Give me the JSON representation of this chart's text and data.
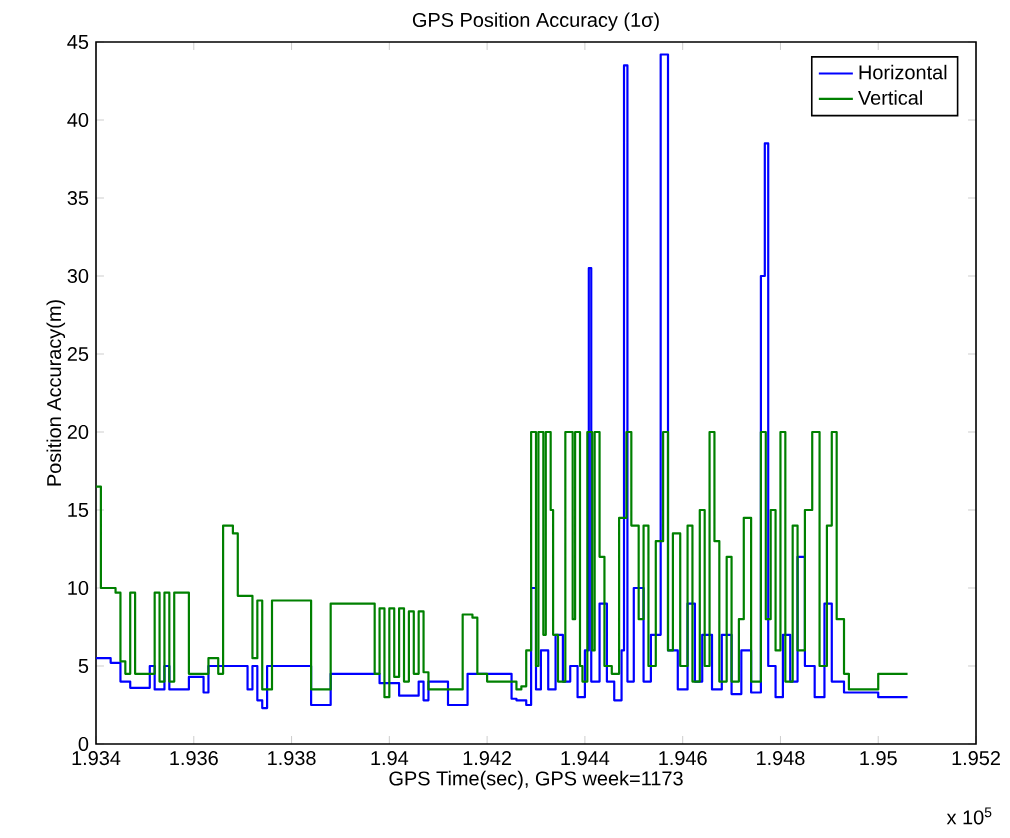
{
  "chart_data": {
    "type": "step",
    "title": "GPS Position Accuracy (1σ)",
    "xlabel": "GPS Time(sec), GPS week=1173",
    "ylabel": "Position Accuracy(m)",
    "annotations": [
      "x 10$^{5}$"
    ],
    "xlim": [
      1.934,
      1.952
    ],
    "xticks": [
      1.934,
      1.936,
      1.938,
      1.94,
      1.942,
      1.944,
      1.946,
      1.948,
      1.95,
      1.952
    ],
    "ylim": [
      0,
      45
    ],
    "yticks": [
      0,
      5,
      10,
      15,
      20,
      25,
      30,
      35,
      40,
      45
    ],
    "grid": false,
    "legend": "top right",
    "marker": "none",
    "line_style": "solid",
    "series": [
      {
        "name": "Horizontal",
        "color": "#0000ff",
        "x": [
          1.934,
          1.9343,
          1.9345,
          1.9347,
          1.935,
          1.9351,
          1.9352,
          1.9354,
          1.9355,
          1.9358,
          1.9359,
          1.9362,
          1.9363,
          1.937,
          1.9371,
          1.9372,
          1.9373,
          1.9374,
          1.9375,
          1.9383,
          1.9384,
          1.9387,
          1.9388,
          1.9397,
          1.9398,
          1.9401,
          1.9402,
          1.9405,
          1.9406,
          1.9407,
          1.9408,
          1.9411,
          1.9412,
          1.9415,
          1.9416,
          1.9424,
          1.9425,
          1.9426,
          1.9428,
          1.9429,
          1.943,
          1.9431,
          1.94325,
          1.9434,
          1.94355,
          1.9437,
          1.94385,
          1.944,
          1.94408,
          1.94413,
          1.9443,
          1.94445,
          1.9446,
          1.94475,
          1.9448,
          1.94487,
          1.945,
          1.9452,
          1.94535,
          1.94555,
          1.9457,
          1.9459,
          1.9461,
          1.94625,
          1.9464,
          1.9466,
          1.9468,
          1.947,
          1.9472,
          1.9474,
          1.9476,
          1.94768,
          1.94775,
          1.9479,
          1.94805,
          1.9482,
          1.94835,
          1.9485,
          1.9487,
          1.9489,
          1.94905,
          1.9493,
          1.95,
          1.9506
        ],
        "values": [
          5.5,
          5.2,
          4.0,
          3.6,
          3.6,
          5.0,
          3.5,
          5.0,
          3.5,
          3.5,
          4.3,
          3.3,
          5.0,
          5.0,
          3.5,
          5.0,
          2.8,
          2.3,
          5.0,
          5.0,
          2.5,
          2.5,
          4.5,
          4.5,
          3.9,
          3.9,
          3.1,
          3.1,
          4.0,
          2.8,
          4.0,
          4.0,
          2.5,
          2.5,
          4.5,
          4.5,
          2.9,
          2.8,
          2.5,
          10,
          3.5,
          6,
          3.5,
          7,
          4,
          5,
          3,
          6,
          30.5,
          4,
          9,
          4,
          2.8,
          6,
          43.5,
          4,
          10,
          4,
          7,
          44.2,
          6,
          3.5,
          9,
          4,
          7,
          3.5,
          7,
          3.2,
          6,
          3.3,
          30,
          38.5,
          5,
          3,
          7,
          4,
          12,
          5,
          3,
          9,
          4,
          3.3,
          3.0,
          3.0
        ]
      },
      {
        "name": "Vertical",
        "color": "#008000",
        "x": [
          1.934,
          1.9341,
          1.9344,
          1.9345,
          1.9346,
          1.9347,
          1.9348,
          1.9351,
          1.9352,
          1.9353,
          1.9354,
          1.9355,
          1.9356,
          1.9358,
          1.9359,
          1.9362,
          1.9363,
          1.9365,
          1.9366,
          1.9368,
          1.9369,
          1.9371,
          1.9372,
          1.9373,
          1.9374,
          1.9375,
          1.9376,
          1.9383,
          1.9384,
          1.9387,
          1.9388,
          1.9396,
          1.9397,
          1.9398,
          1.9399,
          1.94,
          1.9401,
          1.9402,
          1.9403,
          1.9404,
          1.9405,
          1.9406,
          1.9407,
          1.9408,
          1.9414,
          1.9415,
          1.9417,
          1.9418,
          1.942,
          1.9423,
          1.9426,
          1.9427,
          1.9428,
          1.9429,
          1.943,
          1.94305,
          1.94315,
          1.9432,
          1.9433,
          1.94335,
          1.94345,
          1.9436,
          1.94375,
          1.9438,
          1.9439,
          1.94395,
          1.94405,
          1.94415,
          1.9442,
          1.9443,
          1.9444,
          1.94455,
          1.9447,
          1.94485,
          1.94495,
          1.9451,
          1.9452,
          1.9453,
          1.94545,
          1.9456,
          1.9457,
          1.9458,
          1.94595,
          1.9461,
          1.9462,
          1.94635,
          1.94645,
          1.94655,
          1.94665,
          1.94675,
          1.9469,
          1.947,
          1.94715,
          1.94725,
          1.9474,
          1.9476,
          1.9477,
          1.9478,
          1.9479,
          1.948,
          1.9481,
          1.94825,
          1.94835,
          1.9485,
          1.94865,
          1.9488,
          1.94895,
          1.94905,
          1.94915,
          1.9493,
          1.9494,
          1.95,
          1.9506
        ],
        "values": [
          16.5,
          10,
          9.7,
          5.3,
          4.5,
          9.7,
          4.5,
          4.5,
          9.7,
          4,
          9.7,
          4,
          9.7,
          9.7,
          4.5,
          4.5,
          5.5,
          4.5,
          14,
          13.5,
          9.5,
          9.5,
          5.5,
          9.2,
          3.5,
          3.5,
          9.2,
          9.2,
          3.5,
          3.5,
          9,
          9,
          4.5,
          8.7,
          3.0,
          8.7,
          4.3,
          8.7,
          4,
          8.5,
          4.5,
          8.5,
          4.6,
          3.5,
          3.5,
          8.3,
          8.1,
          4.5,
          4,
          4,
          3.5,
          3.7,
          6,
          20,
          5,
          20,
          7,
          20,
          15,
          7,
          4,
          20,
          8,
          20,
          5,
          4,
          20,
          6,
          20,
          12,
          5,
          4.5,
          14.5,
          20,
          14,
          8,
          14,
          5,
          13,
          20,
          6,
          13.5,
          5,
          14,
          4,
          15,
          5,
          20,
          13,
          4,
          12,
          4,
          8,
          14.5,
          4,
          20,
          8,
          15,
          6,
          20,
          4,
          14,
          6,
          15,
          20,
          5,
          14,
          20,
          8,
          4.5,
          3.5,
          4.5,
          4.5
        ]
      }
    ]
  }
}
